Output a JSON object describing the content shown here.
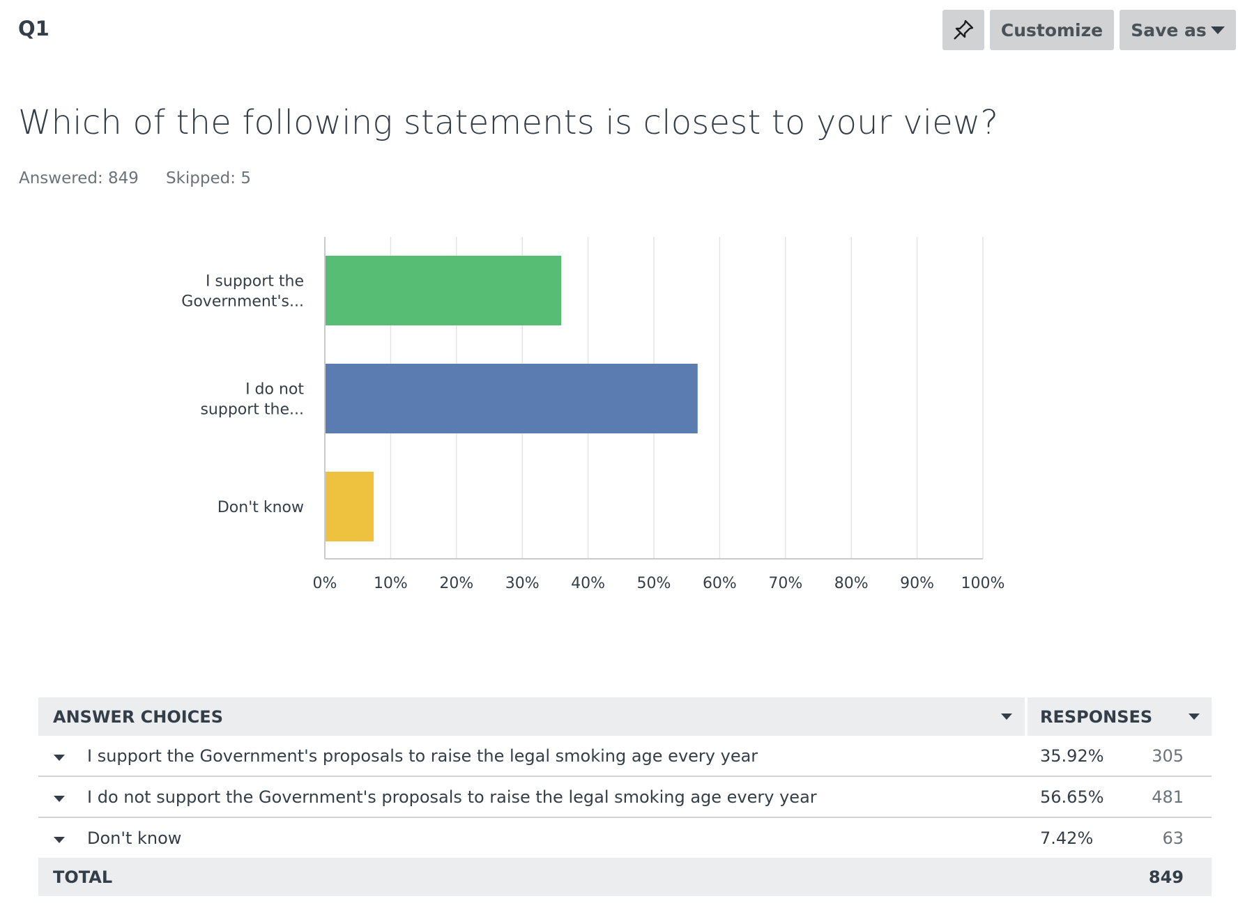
{
  "header": {
    "question_number": "Q1",
    "question_title": "Which of the following statements is closest to your view?",
    "answered": "Answered: 849",
    "skipped": "Skipped: 5"
  },
  "toolbar": {
    "pin_icon": "pin-icon",
    "customize_label": "Customize",
    "save_as_label": "Save as"
  },
  "chart_data": {
    "type": "bar",
    "orientation": "horizontal",
    "categories": [
      [
        "I support the",
        "Government's..."
      ],
      [
        "I do not",
        "support the..."
      ],
      [
        "Don't know"
      ]
    ],
    "values": [
      35.92,
      56.65,
      7.42
    ],
    "colors": [
      "#57bd75",
      "#5a7cb0",
      "#eec13f"
    ],
    "xlim": [
      0,
      100
    ],
    "ticks": [
      "0%",
      "10%",
      "20%",
      "30%",
      "40%",
      "50%",
      "60%",
      "70%",
      "80%",
      "90%",
      "100%"
    ],
    "grid": true,
    "title": "",
    "xlabel": "",
    "ylabel": ""
  },
  "table": {
    "headers": {
      "answer_choices": "ANSWER CHOICES",
      "responses": "RESPONSES"
    },
    "rows": [
      {
        "answer": "I support the Government's proposals to raise the legal smoking age every year",
        "percent": "35.92%",
        "count": "305"
      },
      {
        "answer": "I do not support the Government's proposals to raise the legal smoking age every year",
        "percent": "56.65%",
        "count": "481"
      },
      {
        "answer": "Don't know",
        "percent": "7.42%",
        "count": "63"
      }
    ],
    "footer": {
      "label": "TOTAL",
      "total": "849"
    }
  }
}
